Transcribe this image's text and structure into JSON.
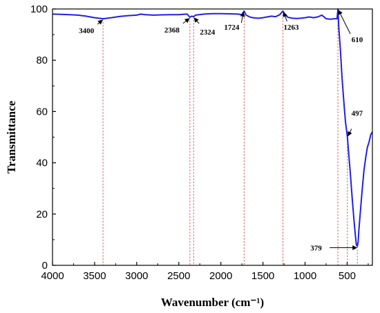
{
  "chart_data": {
    "type": "line",
    "xlabel": "Wavenumber (cm⁻¹)",
    "ylabel": "Transmittance",
    "xlim": [
      4000,
      200
    ],
    "ylim": [
      0,
      100
    ],
    "x_ticks": [
      "4000",
      "3500",
      "3000",
      "2500",
      "2000",
      "1500",
      "1000",
      "500"
    ],
    "y_ticks": [
      "0",
      "20",
      "40",
      "60",
      "80",
      "100"
    ],
    "line_color": "#1f1fe6",
    "marker_line_color": "#e03030",
    "series": [
      {
        "x": [
          4000,
          3900,
          3800,
          3700,
          3600,
          3500,
          3400,
          3300,
          3200,
          3100,
          3000,
          2950,
          2900,
          2800,
          2700,
          2600,
          2500,
          2450,
          2400,
          2368,
          2345,
          2324,
          2300,
          2200,
          2100,
          2000,
          1900,
          1800,
          1750,
          1724,
          1700,
          1650,
          1600,
          1550,
          1500,
          1450,
          1400,
          1350,
          1300,
          1263,
          1230,
          1200,
          1150,
          1100,
          1050,
          1000,
          950,
          900,
          850,
          800,
          750,
          700,
          650,
          620,
          612,
          610,
          605,
          600,
          580,
          560,
          540,
          520,
          500,
          497,
          480,
          460,
          440,
          420,
          400,
          390,
          379,
          370,
          360,
          340,
          320,
          300,
          280,
          260,
          240,
          220,
          200
        ],
        "y": [
          98.0,
          97.9,
          97.8,
          97.6,
          97.2,
          96.6,
          96.2,
          96.6,
          97.1,
          97.4,
          97.6,
          98.0,
          97.8,
          97.6,
          97.7,
          97.8,
          97.8,
          97.9,
          98.0,
          96.8,
          97.2,
          97.0,
          97.6,
          98.0,
          98.2,
          98.2,
          98.1,
          98.0,
          97.8,
          99.2,
          97.6,
          96.8,
          96.5,
          96.4,
          96.6,
          96.9,
          97.2,
          97.0,
          97.8,
          99.2,
          97.4,
          96.7,
          96.4,
          96.3,
          96.4,
          96.6,
          96.9,
          96.6,
          96.9,
          97.6,
          96.2,
          96.0,
          96.2,
          96.2,
          99.0,
          100,
          97.0,
          93.0,
          84.0,
          73.0,
          64.0,
          56.0,
          51.0,
          50.0,
          43.0,
          35.0,
          26.0,
          18.0,
          11.0,
          8.0,
          7.4,
          9.0,
          14.0,
          22.0,
          30.0,
          37.0,
          42.0,
          46.0,
          48.0,
          51.0,
          52.0
        ]
      }
    ],
    "annotations": [
      {
        "label": "3400",
        "x": 3400,
        "y": 96.2
      },
      {
        "label": "2368",
        "x": 2368,
        "y": 96.8
      },
      {
        "label": "2324",
        "x": 2324,
        "y": 97.0
      },
      {
        "label": "1724",
        "x": 1724,
        "y": 99.2
      },
      {
        "label": "1263",
        "x": 1263,
        "y": 99.2
      },
      {
        "label": "610",
        "x": 610,
        "y": 100
      },
      {
        "label": "497",
        "x": 497,
        "y": 50.0
      },
      {
        "label": "379",
        "x": 379,
        "y": 7.4
      }
    ]
  }
}
